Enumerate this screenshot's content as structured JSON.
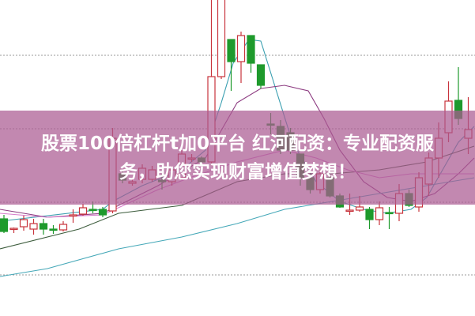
{
  "banner": {
    "line1": "股票100倍杠杆t加0平台 红河配资：专业配资服",
    "line2": "务，助您实现财富增值梦想！"
  },
  "colors": {
    "up": "#c8343c",
    "down": "#1e9a2c",
    "banner": "#c288b0",
    "grid": "#9a9a9a"
  },
  "chart_data": {
    "type": "candlestick",
    "title": "",
    "xlabel": "",
    "ylabel": "",
    "grid": true,
    "ylim": [
      0,
      400
    ],
    "gridlines": [
      330,
      237,
      144,
      52
    ],
    "candles": [
      [
        123,
        107,
        128,
        105
      ],
      [
        110,
        111,
        112,
        105
      ],
      [
        113,
        122,
        127,
        108
      ],
      [
        110,
        117,
        123,
        103
      ],
      [
        117,
        110,
        123,
        103
      ],
      [
        110,
        109,
        115,
        104
      ],
      [
        109,
        116,
        120,
        107
      ],
      [
        127,
        128,
        135,
        118
      ],
      [
        129,
        137,
        142,
        127
      ],
      [
        135,
        134,
        145,
        130
      ],
      [
        135,
        128,
        138,
        125
      ],
      [
        133,
        225,
        238,
        130
      ],
      [
        180,
        172,
        185,
        168
      ],
      [
        168,
        170,
        175,
        165
      ],
      [
        173,
        187,
        192,
        168
      ],
      [
        173,
        185,
        190,
        170
      ],
      [
        172,
        170,
        180,
        160
      ],
      [
        170,
        185,
        190,
        165
      ],
      [
        175,
        205,
        210,
        172
      ],
      [
        199,
        200,
        205,
        195
      ],
      [
        200,
        195,
        202,
        193
      ],
      [
        195,
        303,
        420,
        190
      ],
      [
        303,
        420,
        420,
        300
      ],
      [
        350,
        322,
        350,
        285
      ],
      [
        322,
        355,
        360,
        295
      ],
      [
        355,
        320,
        355,
        308
      ],
      [
        318,
        292,
        318,
        288
      ],
      [
        243,
        242,
        257,
        230
      ],
      [
        240,
        210,
        248,
        205
      ],
      [
        232,
        210,
        238,
        205
      ],
      [
        205,
        175,
        205,
        165
      ],
      [
        175,
        160,
        185,
        155
      ],
      [
        160,
        180,
        185,
        155
      ],
      [
        175,
        152,
        180,
        150
      ],
      [
        152,
        138,
        155,
        137
      ],
      [
        133,
        134,
        155,
        128
      ],
      [
        134,
        138,
        152,
        132
      ],
      [
        135,
        122,
        138,
        110
      ],
      [
        122,
        137,
        145,
        115
      ],
      [
        131,
        130,
        138,
        110
      ],
      [
        130,
        155,
        167,
        120
      ],
      [
        155,
        140,
        160,
        138
      ],
      [
        138,
        175,
        182,
        132
      ],
      [
        167,
        200,
        207,
        152
      ],
      [
        200,
        225,
        245,
        175
      ],
      [
        232,
        272,
        297,
        220
      ],
      [
        273,
        250,
        315,
        242
      ],
      [
        225,
        236,
        277,
        205
      ]
    ],
    "candle_format": [
      "open",
      "close",
      "high",
      "low"
    ],
    "moving_averages": [
      {
        "color": "#3a9fb0",
        "points": [
          [
            -0.4,
            120
          ],
          [
            10,
            135
          ],
          [
            11,
            145
          ],
          [
            14,
            165
          ],
          [
            18,
            185
          ],
          [
            20.4,
            210
          ],
          [
            22,
            270
          ],
          [
            23.2,
            320
          ],
          [
            24.8,
            350
          ],
          [
            26,
            348
          ],
          [
            27.2,
            300
          ],
          [
            29.2,
            220
          ],
          [
            31.6,
            170
          ],
          [
            34,
            145
          ],
          [
            36.4,
            135
          ],
          [
            38.8,
            130
          ],
          [
            41.2,
            135
          ],
          [
            42.8,
            150
          ],
          [
            44.4,
            185
          ],
          [
            46,
            220
          ],
          [
            47.6,
            240
          ]
        ]
      },
      {
        "color": "#8c3a80",
        "points": [
          [
            -0.4,
            135
          ],
          [
            4.4,
            125
          ],
          [
            10,
            130
          ],
          [
            15.6,
            165
          ],
          [
            20.4,
            200
          ],
          [
            23.6,
            270
          ],
          [
            26,
            288
          ],
          [
            28.4,
            292
          ],
          [
            30.8,
            285
          ],
          [
            32.4,
            250
          ],
          [
            34,
            210
          ],
          [
            36.4,
            170
          ],
          [
            38.8,
            150
          ],
          [
            41.2,
            145
          ],
          [
            43.6,
            155
          ],
          [
            46,
            180
          ],
          [
            47.6,
            200
          ]
        ]
      },
      {
        "color": "#3c5c3c",
        "points": [
          [
            -0.4,
            85
          ],
          [
            7.6,
            110
          ],
          [
            11.6,
            130
          ],
          [
            18,
            140
          ],
          [
            23.6,
            170
          ],
          [
            28.4,
            180
          ],
          [
            33.2,
            180
          ],
          [
            38,
            185
          ],
          [
            42.8,
            195
          ],
          [
            47.6,
            215
          ]
        ]
      },
      {
        "color": "#d77ccb",
        "points": [
          [
            -0.4,
            130
          ],
          [
            4.4,
            125
          ],
          [
            10,
            128
          ],
          [
            15.6,
            160
          ],
          [
            18.8,
            175
          ],
          [
            23.6,
            195
          ],
          [
            28.4,
            210
          ],
          [
            31.6,
            200
          ],
          [
            34.8,
            185
          ],
          [
            38,
            175
          ],
          [
            41.2,
            180
          ],
          [
            44.4,
            180
          ],
          [
            47.6,
            180
          ]
        ]
      },
      {
        "color": "#45a8b8",
        "points": [
          [
            -0.4,
            50
          ],
          [
            4.4,
            60
          ],
          [
            11.6,
            85
          ],
          [
            18,
            100
          ],
          [
            23.6,
            117
          ],
          [
            28.4,
            135
          ],
          [
            33.2,
            145
          ],
          [
            38,
            155
          ],
          [
            42.8,
            165
          ],
          [
            47.6,
            175
          ]
        ]
      }
    ]
  }
}
